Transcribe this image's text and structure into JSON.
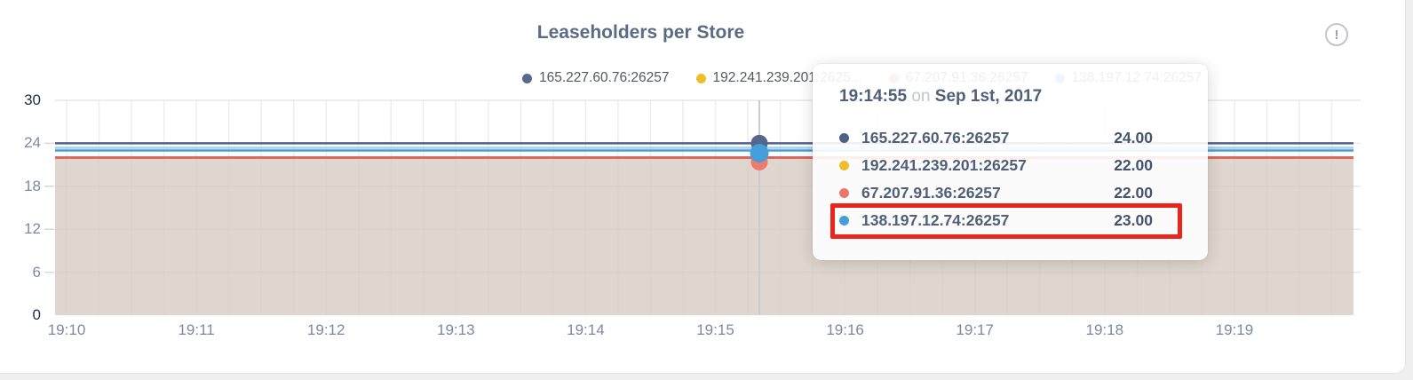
{
  "card": {
    "title": "Leaseholders per Store"
  },
  "alert_icon": {
    "glyph": "!"
  },
  "legend": {
    "items": [
      {
        "label": "165.227.60.76:26257",
        "color": "#55688d"
      },
      {
        "label": "192.241.239.201:2625...",
        "color": "#eebe29"
      },
      {
        "label": "67.207.91.36:26257",
        "color": "#ee756e"
      },
      {
        "label": "138.197.12.74:26257",
        "color": "#459fd9"
      }
    ]
  },
  "tooltip": {
    "time": "19:14:55",
    "preposition": "on",
    "date": "Sep 1st, 2017",
    "highlight_color": "#e9251c",
    "rows": [
      {
        "label": "165.227.60.76:26257",
        "value": "24.00",
        "color": "#4e6285",
        "highlighted": false
      },
      {
        "label": "192.241.239.201:26257",
        "value": "22.00",
        "color": "#eebe29",
        "highlighted": false
      },
      {
        "label": "67.207.91.36:26257",
        "value": "22.00",
        "color": "#ee756e",
        "highlighted": false
      },
      {
        "label": "138.197.12.74:26257",
        "value": "23.00",
        "color": "#459fd9",
        "highlighted": true
      }
    ]
  },
  "chart_data": {
    "type": "line",
    "title": "Leaseholders per Store",
    "x_ticks": [
      "19:10",
      "19:11",
      "19:12",
      "19:13",
      "19:14",
      "19:15",
      "19:16",
      "19:17",
      "19:18",
      "19:19"
    ],
    "y_ticks": [
      0,
      6,
      12,
      18,
      24,
      30
    ],
    "ylim": [
      0,
      30
    ],
    "grid": "on",
    "legend_position": "top",
    "area_fill_color": "#d6ccc1",
    "series": [
      {
        "name": "165.227.60.76:26257",
        "color": "#51628a",
        "constant_value": 24
      },
      {
        "name": "192.241.239.201:26257",
        "color": "#eebe29",
        "constant_value": 22
      },
      {
        "name": "67.207.91.36:26257",
        "color": "#dd685e",
        "constant_value": 22
      },
      {
        "name": "138.197.12.74:26257",
        "color": "#459fd9",
        "constant_value": 23
      }
    ],
    "hover": {
      "time": "19:14:55",
      "date": "Sep 1st, 2017",
      "values": [
        24,
        22,
        22,
        23
      ]
    }
  }
}
